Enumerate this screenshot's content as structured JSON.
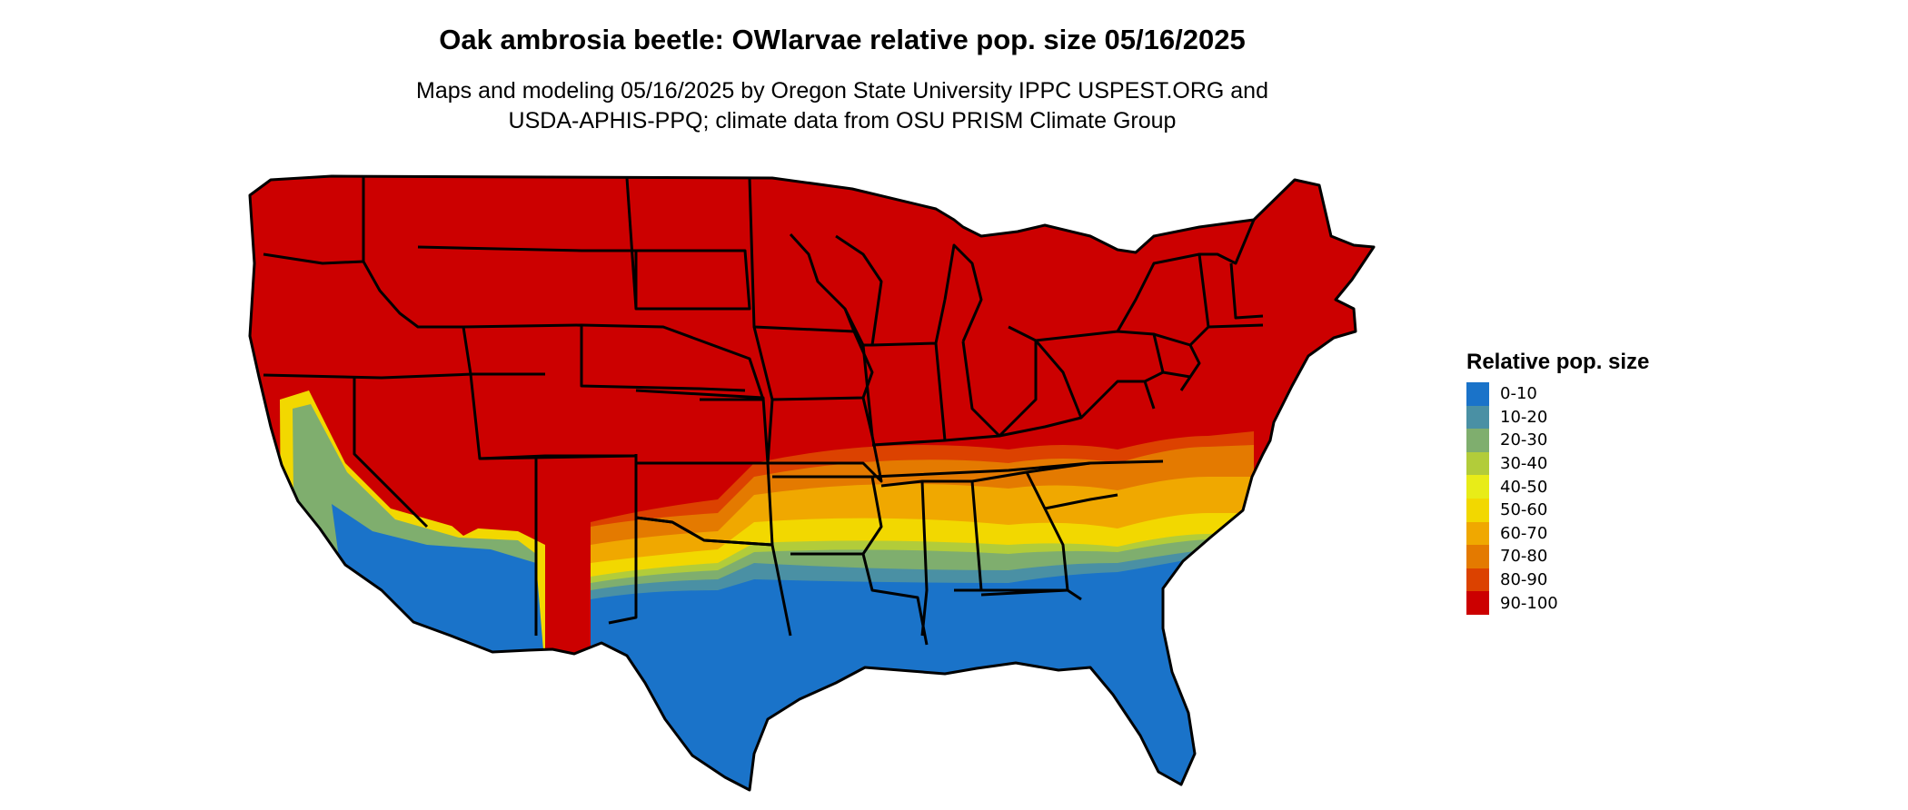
{
  "map": {
    "title": "Oak ambrosia beetle: OWlarvae relative pop. size 05/16/2025",
    "subtitle_line1": "Maps and modeling 05/16/2025 by Oregon State University IPPC USPEST.ORG and",
    "subtitle_line2": "USDA-APHIS-PPQ; climate data from OSU PRISM Climate Group",
    "region": "Contiguous United States",
    "state_borders_color": "#000000",
    "legend": {
      "title": "Relative pop. size",
      "items": [
        {
          "label": "0-10",
          "color": "#1a73c9"
        },
        {
          "label": "10-20",
          "color": "#4a90a4"
        },
        {
          "label": "20-30",
          "color": "#7fae6e"
        },
        {
          "label": "30-40",
          "color": "#b2cc3a"
        },
        {
          "label": "40-50",
          "color": "#e8ec18"
        },
        {
          "label": "50-60",
          "color": "#f2d800"
        },
        {
          "label": "60-70",
          "color": "#f0a800"
        },
        {
          "label": "70-80",
          "color": "#e47a00"
        },
        {
          "label": "80-90",
          "color": "#dc4200"
        },
        {
          "label": "90-100",
          "color": "#cc0000"
        }
      ]
    }
  }
}
